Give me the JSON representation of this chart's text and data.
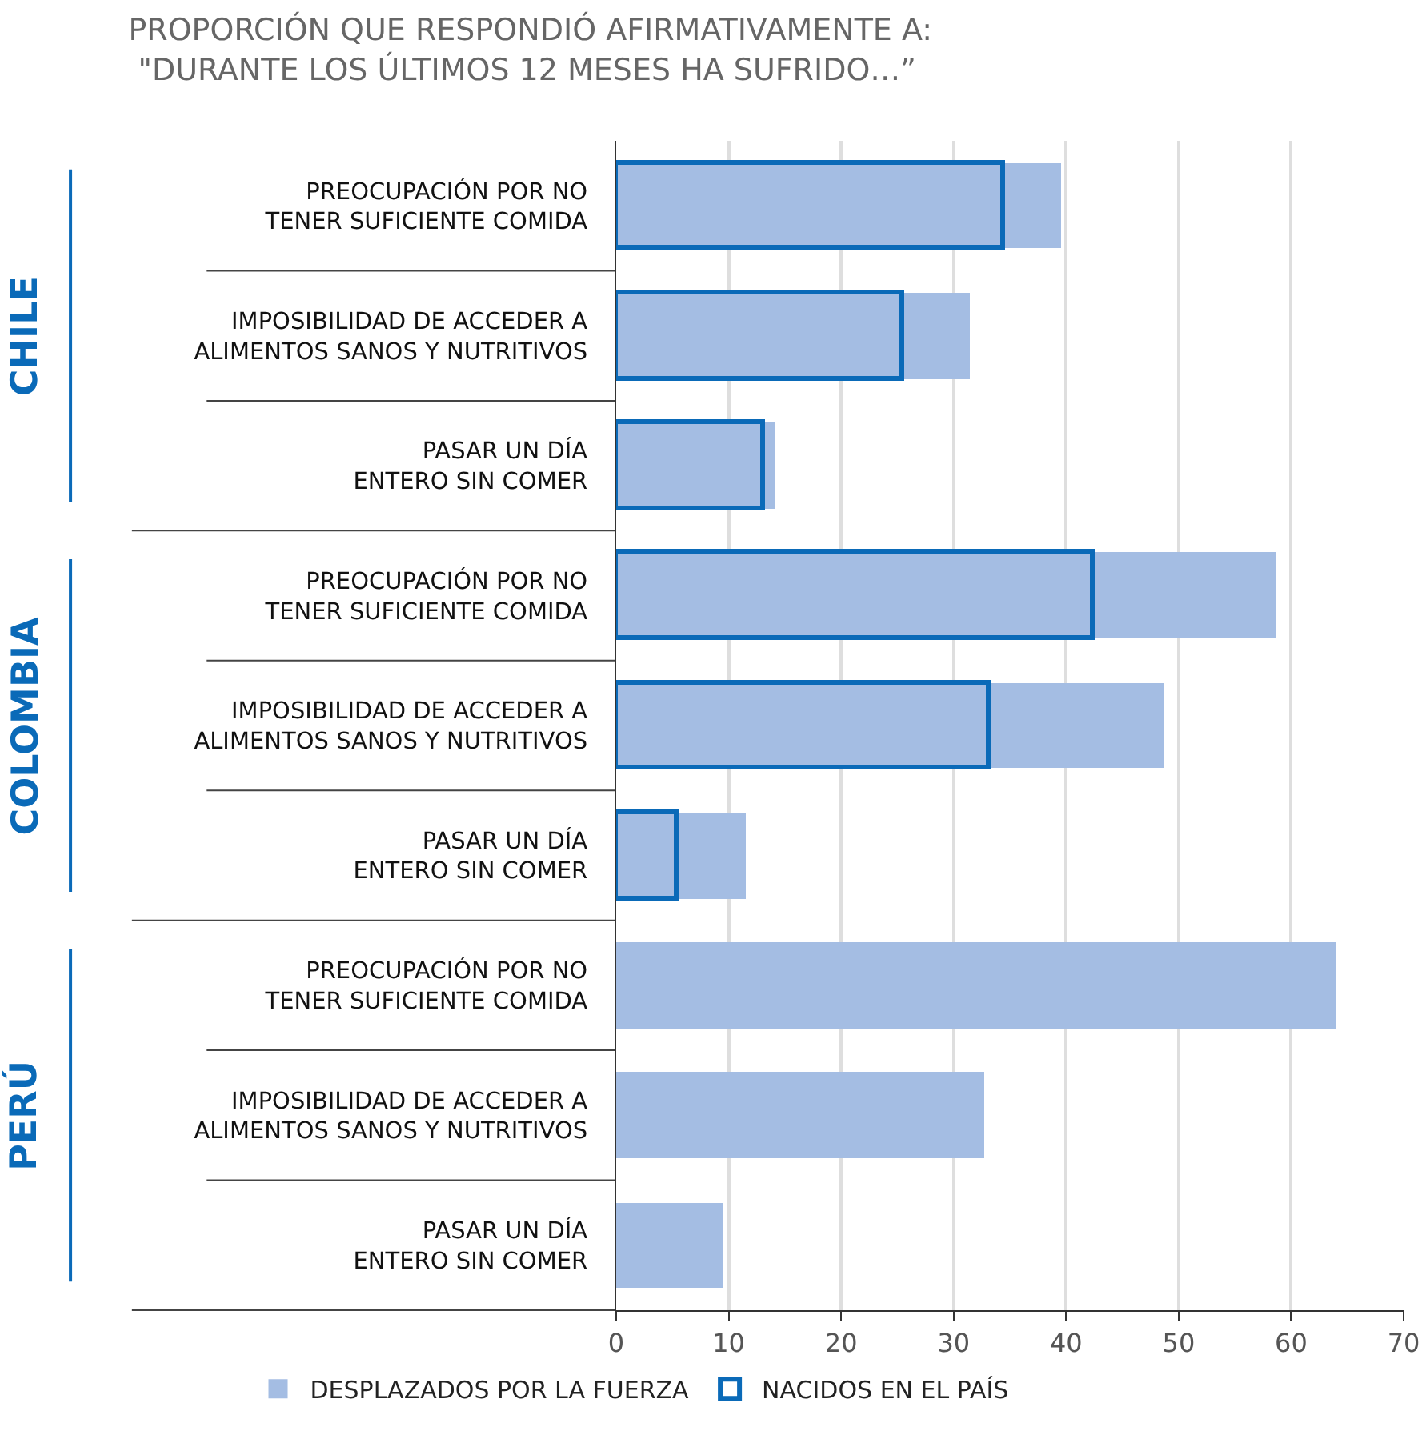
{
  "chart_data": {
    "type": "bar",
    "orientation": "horizontal",
    "title": "PROPORCIÓN QUE RESPONDIÓ AFIRMATIVAMENTE A:\n \"DURANTE LOS ÚLTIMOS 12 MESES HA SUFRIDO…”",
    "categories": [
      "PREOCUPACIÓN POR NO\nTENER SUFICIENTE COMIDA",
      "IMPOSIBILIDAD DE ACCEDER A\nALIMENTOS SANOS Y NUTRITIVOS",
      "PASAR UN DÍA\nENTERO SIN COMER",
      "PREOCUPACIÓN POR NO\nTENER SUFICIENTE COMIDA",
      "IMPOSIBILIDAD DE ACCEDER A\nALIMENTOS SANOS Y NUTRITIVOS",
      "PASAR UN DÍA\nENTERO SIN COMER",
      "PREOCUPACIÓN POR NO\nTENER SUFICIENTE COMIDA",
      "IMPOSIBILIDAD DE ACCEDER A\nALIMENTOS SANOS Y NUTRITIVOS",
      "PASAR UN DÍA\nENTERO SIN COMER"
    ],
    "series": [
      {
        "name": "DESPLAZADOS POR LA FUERZA",
        "color": "#a4bde3",
        "values": [
          39.6,
          31.4,
          14.1,
          58.6,
          48.7,
          11.5,
          64.0,
          32.7,
          9.6
        ]
      },
      {
        "name": "NACIDOS EN EL PAÍS",
        "type": "bar",
        "line_style": "solid",
        "color": "#0a6ab8",
        "values": [
          34.5,
          25.5,
          13.1,
          42.4,
          33.2,
          5.4,
          null,
          null,
          null
        ]
      }
    ],
    "annotations": [
      "CHILE",
      "COLOMBIA",
      "PERÚ"
    ],
    "xlim": [
      0,
      70
    ],
    "xticks": [
      0,
      10,
      20,
      30,
      40,
      50,
      60,
      70
    ],
    "grid": "x",
    "legend": "bottom"
  }
}
